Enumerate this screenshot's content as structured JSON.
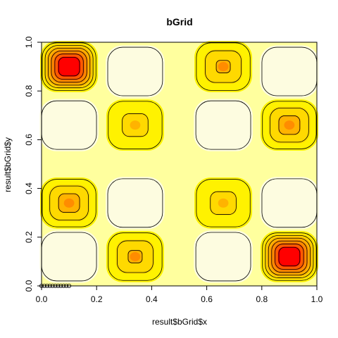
{
  "chart_data": {
    "type": "heatmap",
    "subtype": "filled-contour",
    "title": "bGrid",
    "xlabel": "result$bGrid$x",
    "ylabel": "result$bGrid$y",
    "xlim": [
      0,
      1
    ],
    "ylim": [
      0,
      1
    ],
    "x_ticks": [
      "0.0",
      "0.2",
      "0.4",
      "0.6",
      "0.8",
      "1.0"
    ],
    "y_ticks": [
      "0.0",
      "0.2",
      "0.4",
      "0.6",
      "0.8",
      "1.0"
    ],
    "grid": false,
    "colors": {
      "positive": "#fdfce0",
      "background": "#ffff9e",
      "band1": "#fff200",
      "band2": "#ffd900",
      "band3": "#ffb300",
      "band4": "#ff8c00",
      "band5": "#ff5a00",
      "band6": "#ff0000",
      "contour": "#000000"
    },
    "contour_levels": [
      5,
      0,
      -5,
      -10,
      -15,
      -20,
      -25
    ],
    "cells": [
      {
        "x": 0.1,
        "y": 0.9,
        "value": -35
      },
      {
        "x": 0.34,
        "y": 0.88,
        "value": 7
      },
      {
        "x": 0.66,
        "y": 0.9,
        "value": -12
      },
      {
        "x": 0.9,
        "y": 0.88,
        "value": 7
      },
      {
        "x": 0.1,
        "y": 0.66,
        "value": 7
      },
      {
        "x": 0.34,
        "y": 0.66,
        "value": -8
      },
      {
        "x": 0.66,
        "y": 0.66,
        "value": 4
      },
      {
        "x": 0.9,
        "y": 0.66,
        "value": -14
      },
      {
        "x": 0.1,
        "y": 0.34,
        "value": -14
      },
      {
        "x": 0.34,
        "y": 0.34,
        "value": 4
      },
      {
        "x": 0.66,
        "y": 0.34,
        "value": -8
      },
      {
        "x": 0.9,
        "y": 0.34,
        "value": 7
      },
      {
        "x": 0.1,
        "y": 0.12,
        "value": 7
      },
      {
        "x": 0.34,
        "y": 0.12,
        "value": -12
      },
      {
        "x": 0.66,
        "y": 0.12,
        "value": 7
      },
      {
        "x": 0.9,
        "y": 0.12,
        "value": -35
      }
    ],
    "points": {
      "y": 0.0,
      "x": [
        0.0,
        0.01,
        0.02,
        0.03,
        0.04,
        0.05,
        0.06,
        0.07,
        0.08,
        0.09,
        0.1
      ]
    }
  }
}
